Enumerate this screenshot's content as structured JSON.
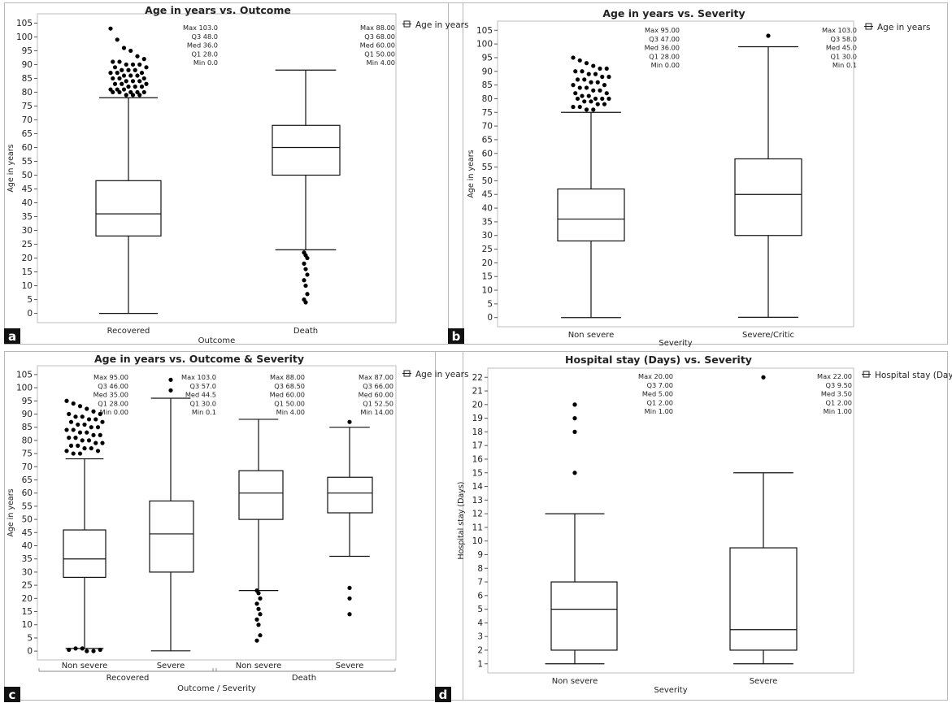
{
  "panels": [
    {
      "letter": "a",
      "chart_data": {
        "type": "box",
        "title": "Age in years vs. Outcome",
        "xlabel": "Outcome",
        "ylabel": "Age in years",
        "ylim": [
          0,
          105
        ],
        "yticks": [
          0,
          5,
          10,
          15,
          20,
          25,
          30,
          35,
          40,
          45,
          50,
          55,
          60,
          65,
          70,
          75,
          80,
          85,
          90,
          95,
          100,
          105
        ],
        "legend": "Age in years",
        "legend_position": "top-right",
        "categories": [
          "Recovered",
          "Death"
        ],
        "boxes": [
          {
            "category": "Recovered",
            "min": 0,
            "q1": 28,
            "median": 36,
            "q3": 48,
            "max": 103,
            "whisker_low": 0,
            "whisker_high": 78,
            "stats": [
              "Max 103.0",
              "Q3  48.0",
              "Med 36.0",
              "Q1  28.0",
              "Min 0.0"
            ]
          },
          {
            "category": "Death",
            "min": 4,
            "q1": 50,
            "median": 60,
            "q3": 68,
            "max": 88,
            "whisker_low": 23,
            "whisker_high": 88,
            "stats": [
              "Max 88.00",
              "Q3  68.00",
              "Med 60.00",
              "Q1  50.00",
              "Min 4.00"
            ]
          }
        ],
        "outliers": [
          {
            "category": "Recovered",
            "values": [
              103,
              99,
              96,
              95,
              93,
              92,
              91,
              91,
              90,
              90,
              90,
              89,
              89,
              88,
              88,
              88,
              87,
              87,
              87,
              86,
              86,
              86,
              85,
              85,
              85,
              84,
              84,
              84,
              83,
              83,
              83,
              82,
              82,
              82,
              81,
              81,
              81,
              80,
              80,
              80,
              80,
              80,
              79,
              79,
              79
            ]
          },
          {
            "category": "Death",
            "values": [
              22,
              21,
              20,
              18,
              16,
              14,
              12,
              10,
              7,
              5,
              4
            ]
          }
        ]
      }
    },
    {
      "letter": "b",
      "chart_data": {
        "type": "box",
        "title": "Age in years vs. Severity",
        "xlabel": "Severity",
        "ylabel": "Age in years",
        "ylim": [
          0,
          105
        ],
        "yticks": [
          0,
          5,
          10,
          15,
          20,
          25,
          30,
          35,
          40,
          45,
          50,
          55,
          60,
          65,
          70,
          75,
          80,
          85,
          90,
          95,
          100,
          105
        ],
        "legend": "Age in years",
        "legend_position": "top-right",
        "categories": [
          "Non severe",
          "Severe/Critic"
        ],
        "boxes": [
          {
            "category": "Non severe",
            "min": 0,
            "q1": 28,
            "median": 36,
            "q3": 47,
            "max": 95,
            "whisker_low": 0,
            "whisker_high": 75,
            "stats": [
              "Max 95.00",
              "Q3  47.00",
              "Med 36.00",
              "Q1  28.00",
              "Min 0.00"
            ]
          },
          {
            "category": "Severe/Critic",
            "min": 0.1,
            "q1": 30,
            "median": 45,
            "q3": 58,
            "max": 103,
            "whisker_low": 0.1,
            "whisker_high": 99,
            "stats": [
              "Max 103.0",
              "Q3  58.0",
              "Med 45.0",
              "Q1  30.0",
              "Min 0.1"
            ]
          }
        ],
        "outliers": [
          {
            "category": "Non severe",
            "values": [
              95,
              94,
              93,
              92,
              91,
              91,
              90,
              90,
              89,
              89,
              88,
              88,
              87,
              87,
              86,
              86,
              85,
              85,
              84,
              84,
              83,
              83,
              82,
              82,
              81,
              81,
              80,
              80,
              80,
              80,
              79,
              79,
              78,
              78,
              77,
              77,
              76,
              76
            ]
          },
          {
            "category": "Severe/Critic",
            "values": [
              103
            ]
          }
        ]
      }
    },
    {
      "letter": "c",
      "chart_data": {
        "type": "box",
        "title": "Age in years vs. Outcome & Severity",
        "xlabel": "Outcome / Severity",
        "ylabel": "Age in years",
        "ylim": [
          0,
          105
        ],
        "yticks": [
          0,
          5,
          10,
          15,
          20,
          25,
          30,
          35,
          40,
          45,
          50,
          55,
          60,
          65,
          70,
          75,
          80,
          85,
          90,
          95,
          100,
          105
        ],
        "legend": "Age in years",
        "legend_position": "top-right",
        "categories": [
          "Non severe",
          "Severe",
          "Non severe",
          "Severe"
        ],
        "groups": [
          {
            "label": "Recovered",
            "span": [
              0,
              1
            ]
          },
          {
            "label": "Death",
            "span": [
              2,
              3
            ]
          }
        ],
        "boxes": [
          {
            "category": "Non severe",
            "group": "Recovered",
            "min": 0,
            "q1": 28,
            "median": 35,
            "q3": 46,
            "max": 95,
            "whisker_low": 1,
            "whisker_high": 73,
            "stats": [
              "Max 95.00",
              "Q3  46.00",
              "Med 35.00",
              "Q1  28.00",
              "Min 0.00"
            ]
          },
          {
            "category": "Severe",
            "group": "Recovered",
            "min": 0.1,
            "q1": 30,
            "median": 44.5,
            "q3": 57,
            "max": 103,
            "whisker_low": 0.1,
            "whisker_high": 96,
            "stats": [
              "Max 103.0",
              "Q3  57.0",
              "Med 44.5",
              "Q1  30.0",
              "Min 0.1"
            ]
          },
          {
            "category": "Non severe",
            "group": "Death",
            "min": 4,
            "q1": 50,
            "median": 60,
            "q3": 68.5,
            "max": 88,
            "whisker_low": 23,
            "whisker_high": 88,
            "stats": [
              "Max 88.00",
              "Q3  68.50",
              "Med 60.00",
              "Q1  50.00",
              "Min 4.00"
            ]
          },
          {
            "category": "Severe",
            "group": "Death",
            "min": 14,
            "q1": 52.5,
            "median": 60,
            "q3": 66,
            "max": 87,
            "whisker_low": 36,
            "whisker_high": 85,
            "stats": [
              "Max 87.00",
              "Q3  66.00",
              "Med 60.00",
              "Q1  52.50",
              "Min 14.00"
            ]
          }
        ],
        "outliers": [
          {
            "category_index": 0,
            "values": [
              95,
              94,
              93,
              92,
              91,
              90,
              90,
              89,
              89,
              88,
              88,
              87,
              87,
              86,
              86,
              85,
              85,
              84,
              84,
              83,
              83,
              82,
              82,
              81,
              81,
              80,
              80,
              79,
              79,
              78,
              78,
              77,
              77,
              76,
              76,
              75,
              75,
              0,
              0,
              0.5,
              0.5,
              1,
              1
            ]
          },
          {
            "category_index": 1,
            "values": [
              103,
              99
            ]
          },
          {
            "category_index": 2,
            "values": [
              23,
              22,
              20,
              18,
              16,
              14,
              12,
              10,
              6,
              4
            ]
          },
          {
            "category_index": 3,
            "values": [
              87,
              24,
              20,
              14
            ]
          }
        ]
      }
    },
    {
      "letter": "d",
      "chart_data": {
        "type": "box",
        "title": "Hospital stay (Days) vs. Severity",
        "xlabel": "Severity",
        "ylabel": "Hospital stay (Days)",
        "ylim": [
          1,
          22
        ],
        "yticks": [
          1,
          2,
          3,
          4,
          5,
          6,
          7,
          8,
          9,
          10,
          11,
          12,
          13,
          14,
          15,
          16,
          17,
          18,
          19,
          20,
          21,
          22
        ],
        "legend": "Hospital stay (Days)",
        "legend_position": "top-right",
        "categories": [
          "Non severe",
          "Severe"
        ],
        "boxes": [
          {
            "category": "Non severe",
            "min": 1,
            "q1": 2,
            "median": 5,
            "q3": 7,
            "max": 20,
            "whisker_low": 1,
            "whisker_high": 12,
            "stats": [
              "Max 20.00",
              "Q3  7.00",
              "Med 5.00",
              "Q1  2.00",
              "Min 1.00"
            ]
          },
          {
            "category": "Severe",
            "min": 1,
            "q1": 2,
            "median": 3.5,
            "q3": 9.5,
            "max": 22,
            "whisker_low": 1,
            "whisker_high": 15,
            "stats": [
              "Max 22.00",
              "Q3  9.50",
              "Med 3.50",
              "Q1  2.00",
              "Min 1.00"
            ]
          }
        ],
        "outliers": [
          {
            "category": "Non severe",
            "values": [
              20,
              20,
              19,
              18,
              15
            ]
          },
          {
            "category": "Severe",
            "values": [
              22
            ]
          }
        ]
      }
    }
  ]
}
